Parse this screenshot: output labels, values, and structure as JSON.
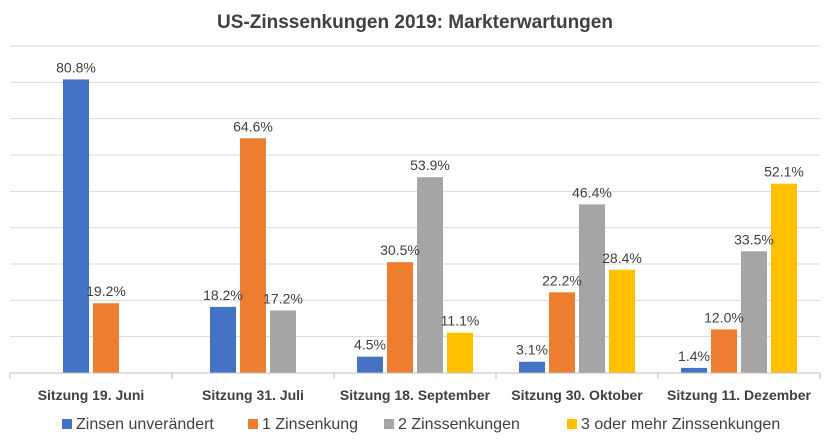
{
  "chart_data": {
    "type": "bar",
    "title": "US-Zinssenkungen 2019: Markterwartungen",
    "categories": [
      "Sitzung 19. Juni",
      "Sitzung 31. Juli",
      "Sitzung 18. September",
      "Sitzung 30. Oktober",
      "Sitzung 11. Dezember"
    ],
    "series": [
      {
        "name": "Zinsen unverändert",
        "color": "#4472C4",
        "values": [
          80.8,
          18.2,
          4.5,
          3.1,
          1.4
        ],
        "labels": [
          "80.8%",
          "18.2%",
          "4.5%",
          "3.1%",
          "1.4%"
        ]
      },
      {
        "name": "1 Zinsenkung",
        "color": "#ED7D31",
        "values": [
          19.2,
          64.6,
          30.5,
          22.2,
          12.0
        ],
        "labels": [
          "19.2%",
          "64.6%",
          "30.5%",
          "22.2%",
          "12.0%"
        ]
      },
      {
        "name": "2 Zinssenkungen",
        "color": "#A5A5A5",
        "values": [
          null,
          17.2,
          53.9,
          46.4,
          33.5
        ],
        "labels": [
          null,
          "17.2%",
          "53.9%",
          "46.4%",
          "33.5%"
        ]
      },
      {
        "name": "3 oder mehr Zinssenkungen",
        "color": "#FFC000",
        "values": [
          null,
          null,
          11.1,
          28.4,
          52.1
        ],
        "labels": [
          null,
          null,
          "11.1%",
          "28.4%",
          "52.1%"
        ]
      }
    ],
    "ylim": [
      0,
      90
    ],
    "grid": true,
    "legend_position": "bottom"
  }
}
